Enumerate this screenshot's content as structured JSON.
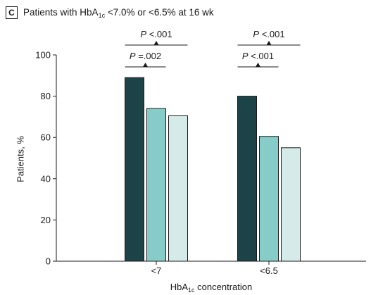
{
  "panel": {
    "letter": "C",
    "title_prefix": "Patients with HbA",
    "title_sub": "1c",
    "title_suffix": " <7.0% or <6.5% at 16 wk"
  },
  "chart_data": {
    "type": "bar",
    "title": "Patients with HbA1c <7.0% or <6.5% at 16 wk",
    "xlabel_prefix": "HbA",
    "xlabel_sub": "1c",
    "xlabel_suffix": " concentration",
    "ylabel": "Patients, %",
    "ylim": [
      0,
      100
    ],
    "yticks": [
      0,
      20,
      40,
      60,
      80,
      100
    ],
    "categories": [
      "<7",
      "<6.5"
    ],
    "series": [
      {
        "color": "#1c4448",
        "values": [
          89,
          80
        ]
      },
      {
        "color": "#86cdc9",
        "values": [
          74,
          60.5
        ]
      },
      {
        "color": "#d4ebea",
        "values": [
          70.5,
          55
        ]
      }
    ],
    "annotations": [
      {
        "category": 0,
        "from_series": 0,
        "to_series": 2,
        "text_prefix": "P",
        "text_value": " <.001",
        "level": 2
      },
      {
        "category": 0,
        "from_series": 0,
        "to_series": 1,
        "text_prefix": "P",
        "text_value": " =.002",
        "level": 1
      },
      {
        "category": 1,
        "from_series": 0,
        "to_series": 2,
        "text_prefix": "P",
        "text_value": " <.001",
        "level": 2
      },
      {
        "category": 1,
        "from_series": 0,
        "to_series": 1,
        "text_prefix": "P",
        "text_value": " <.001",
        "level": 1
      }
    ],
    "grid": false,
    "legend": "none"
  }
}
